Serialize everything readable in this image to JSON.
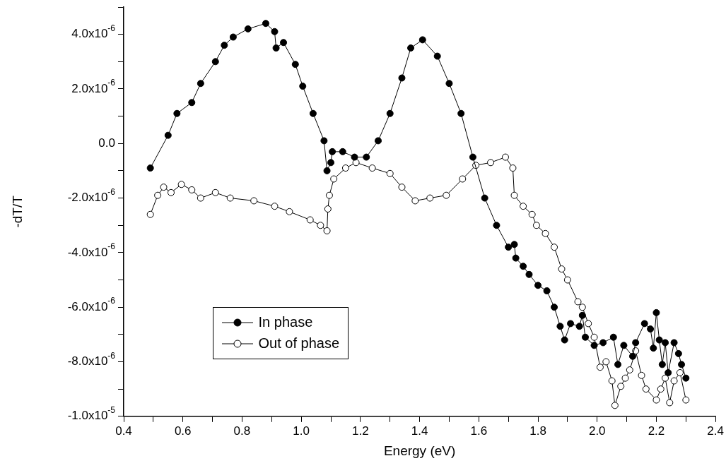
{
  "chart_data": {
    "type": "line",
    "xlabel": "Energy (eV)",
    "ylabel": "-dT/T",
    "legend": "bottom left",
    "marker": "circle",
    "line_style": "solid",
    "grid": false,
    "xlim": [
      0.4,
      2.4
    ],
    "xticks": [
      0.4,
      {
        "value": 0.5,
        "label": null
      },
      0.6,
      {
        "value": 0.7,
        "label": null
      },
      0.8,
      {
        "value": 0.9,
        "label": null
      },
      {
        "value": 1.0,
        "label": "1.0"
      },
      {
        "value": 1.1,
        "label": null
      },
      1.2,
      {
        "value": 1.3,
        "label": null
      },
      1.4,
      {
        "value": 1.5,
        "label": null
      },
      1.6,
      {
        "value": 1.7,
        "label": null
      },
      1.8,
      {
        "value": 1.9,
        "label": null
      },
      {
        "value": 2.0,
        "label": "2.0"
      },
      {
        "value": 2.1,
        "label": null
      },
      2.2,
      {
        "value": 2.3,
        "label": null
      },
      2.4
    ],
    "ylim": [
      -1e-05,
      5e-06
    ],
    "yticks": [
      {
        "value": 5e-06,
        "label": null
      },
      {
        "value": 4e-06,
        "label": "4.0x10$^{-6}$"
      },
      {
        "value": 3e-06,
        "label": null
      },
      {
        "value": 2e-06,
        "label": "2.0x10$^{-6}$"
      },
      {
        "value": 1e-06,
        "label": null
      },
      {
        "value": 0,
        "label": "0.0"
      },
      {
        "value": -1e-06,
        "label": null
      },
      {
        "value": -2e-06,
        "label": "-2.0x10$^{-6}$"
      },
      {
        "value": -3e-06,
        "label": null
      },
      {
        "value": -4e-06,
        "label": "-4.0x10$^{-6}$"
      },
      {
        "value": -5e-06,
        "label": null
      },
      {
        "value": -6e-06,
        "label": "-6.0x10$^{-6}$"
      },
      {
        "value": -7e-06,
        "label": null
      },
      {
        "value": -8e-06,
        "label": "-8.0x10$^{-6}$"
      },
      {
        "value": -9e-06,
        "label": null
      },
      {
        "value": -1e-05,
        "label": "-1.0x10$^{-5}$"
      }
    ],
    "series": [
      {
        "name": "In phase",
        "color": "#000000",
        "x": [
          0.49,
          0.55,
          0.58,
          0.63,
          0.66,
          0.71,
          0.74,
          0.77,
          0.82,
          0.88,
          0.91,
          0.915,
          0.94,
          0.98,
          1.005,
          1.04,
          1.077,
          1.087,
          1.1,
          1.105,
          1.14,
          1.18,
          1.22,
          1.26,
          1.3,
          1.34,
          1.37,
          1.41,
          1.46,
          1.5,
          1.54,
          1.58,
          1.62,
          1.66,
          1.7,
          1.72,
          1.725,
          1.75,
          1.77,
          1.8,
          1.83,
          1.855,
          1.875,
          1.89,
          1.91,
          1.94,
          1.95,
          1.96,
          1.99,
          2.02,
          2.055,
          2.07,
          2.09,
          2.12,
          2.13,
          2.16,
          2.18,
          2.19,
          2.2,
          2.21,
          2.22,
          2.23,
          2.24,
          2.26,
          2.275,
          2.285,
          2.3
        ],
        "values": [
          -9e-07,
          3e-07,
          1.1e-06,
          1.5e-06,
          2.2e-06,
          3e-06,
          3.6e-06,
          3.9e-06,
          4.2e-06,
          4.4e-06,
          4.1e-06,
          3.5e-06,
          3.7e-06,
          2.9e-06,
          2.1e-06,
          1.1e-06,
          1e-07,
          -1e-06,
          -7e-07,
          -3e-07,
          -3e-07,
          -5e-07,
          -5e-07,
          1e-07,
          1.1e-06,
          2.4e-06,
          3.5e-06,
          3.8e-06,
          3.2e-06,
          2.2e-06,
          1.1e-06,
          -5e-07,
          -2e-06,
          -3e-06,
          -3.8e-06,
          -3.7e-06,
          -4.2e-06,
          -4.5e-06,
          -4.8e-06,
          -5.2e-06,
          -5.4e-06,
          -6e-06,
          -6.7e-06,
          -7.2e-06,
          -6.6e-06,
          -6.7e-06,
          -6.3e-06,
          -7.1e-06,
          -7.4e-06,
          -7.3e-06,
          -7.1e-06,
          -8.1e-06,
          -7.4e-06,
          -7.8e-06,
          -7.3e-06,
          -6.6e-06,
          -6.8e-06,
          -7.5e-06,
          -6.2e-06,
          -7.2e-06,
          -8.1e-06,
          -7.3e-06,
          -8.4e-06,
          -7.3e-06,
          -7.7e-06,
          -8.1e-06,
          -8.6e-06
        ]
      },
      {
        "name": "Out of phase",
        "color": "#000000",
        "x": [
          0.49,
          0.515,
          0.535,
          0.56,
          0.595,
          0.63,
          0.66,
          0.71,
          0.76,
          0.84,
          0.91,
          0.96,
          1.03,
          1.065,
          1.087,
          1.09,
          1.095,
          1.11,
          1.15,
          1.185,
          1.24,
          1.3,
          1.34,
          1.385,
          1.435,
          1.49,
          1.545,
          1.59,
          1.64,
          1.69,
          1.715,
          1.72,
          1.75,
          1.78,
          1.795,
          1.825,
          1.855,
          1.88,
          1.9,
          1.935,
          1.95,
          1.97,
          1.99,
          2.01,
          2.03,
          2.05,
          2.06,
          2.08,
          2.095,
          2.11,
          2.13,
          2.15,
          2.165,
          2.2,
          2.215,
          2.23,
          2.245,
          2.26,
          2.28,
          2.3
        ],
        "values": [
          -2.6e-06,
          -1.9e-06,
          -1.6e-06,
          -1.8e-06,
          -1.5e-06,
          -1.7e-06,
          -2e-06,
          -1.8e-06,
          -2e-06,
          -2.1e-06,
          -2.3e-06,
          -2.5e-06,
          -2.8e-06,
          -3e-06,
          -3.2e-06,
          -2.4e-06,
          -1.9e-06,
          -1.3e-06,
          -9e-07,
          -7e-07,
          -9e-07,
          -1.1e-06,
          -1.6e-06,
          -2.1e-06,
          -2e-06,
          -1.9e-06,
          -1.3e-06,
          -8e-07,
          -7e-07,
          -5e-07,
          -9e-07,
          -1.9e-06,
          -2.3e-06,
          -2.6e-06,
          -3e-06,
          -3.3e-06,
          -3.8e-06,
          -4.6e-06,
          -5e-06,
          -5.8e-06,
          -6e-06,
          -6.6e-06,
          -7.1e-06,
          -8.2e-06,
          -8e-06,
          -8.7e-06,
          -9.6e-06,
          -8.9e-06,
          -8.6e-06,
          -8.3e-06,
          -7.6e-06,
          -8.5e-06,
          -9e-06,
          -9.4e-06,
          -9e-06,
          -8.6e-06,
          -9.5e-06,
          -8.7e-06,
          -8.4e-06,
          -9.4e-06
        ]
      }
    ]
  }
}
